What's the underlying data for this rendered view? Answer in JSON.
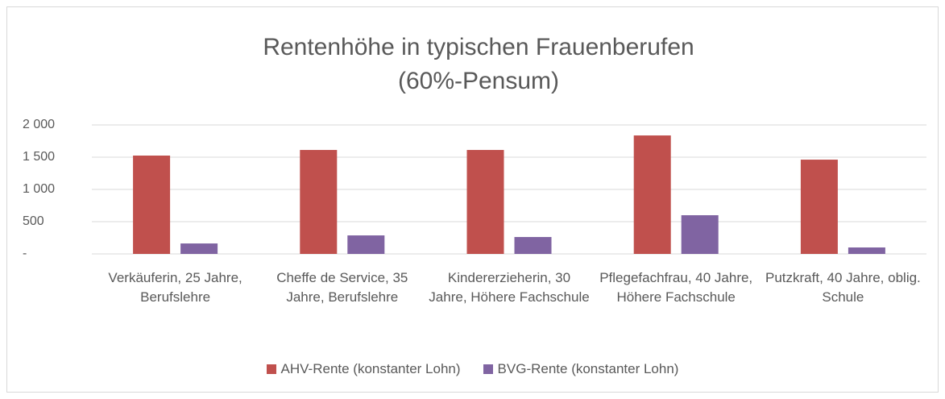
{
  "chart_data": {
    "type": "bar",
    "title": [
      "Rentenhöhe in typischen Frauenberufen",
      "(60%-Pensum)"
    ],
    "categories": [
      "Verkäuferin, 25 Jahre, Berufslehre",
      "Cheffe de Service, 35 Jahre, Berufslehre",
      "Kindererzieherin, 30 Jahre, Höhere Fachschule",
      "Pflegefachfrau, 40 Jahre, Höhere Fachschule",
      "Putzkraft, 40 Jahre, oblig. Schule"
    ],
    "series": [
      {
        "name": "AHV-Rente (konstanter Lohn)",
        "color": "#c0504d",
        "values": [
          1525,
          1612,
          1612,
          1837,
          1462
        ]
      },
      {
        "name": "BVG-Rente (konstanter Lohn)",
        "color": "#8064a2",
        "values": [
          162,
          287,
          262,
          600,
          100
        ]
      }
    ],
    "ylim": [
      0,
      2000
    ],
    "yticks": [
      {
        "value": 0,
        "label": "-"
      },
      500,
      {
        "value": 1000,
        "label": "1 000"
      },
      {
        "value": 1500,
        "label": "1 500"
      },
      {
        "value": 2000,
        "label": "2 000"
      }
    ],
    "grid": true,
    "legend": "bottom"
  }
}
